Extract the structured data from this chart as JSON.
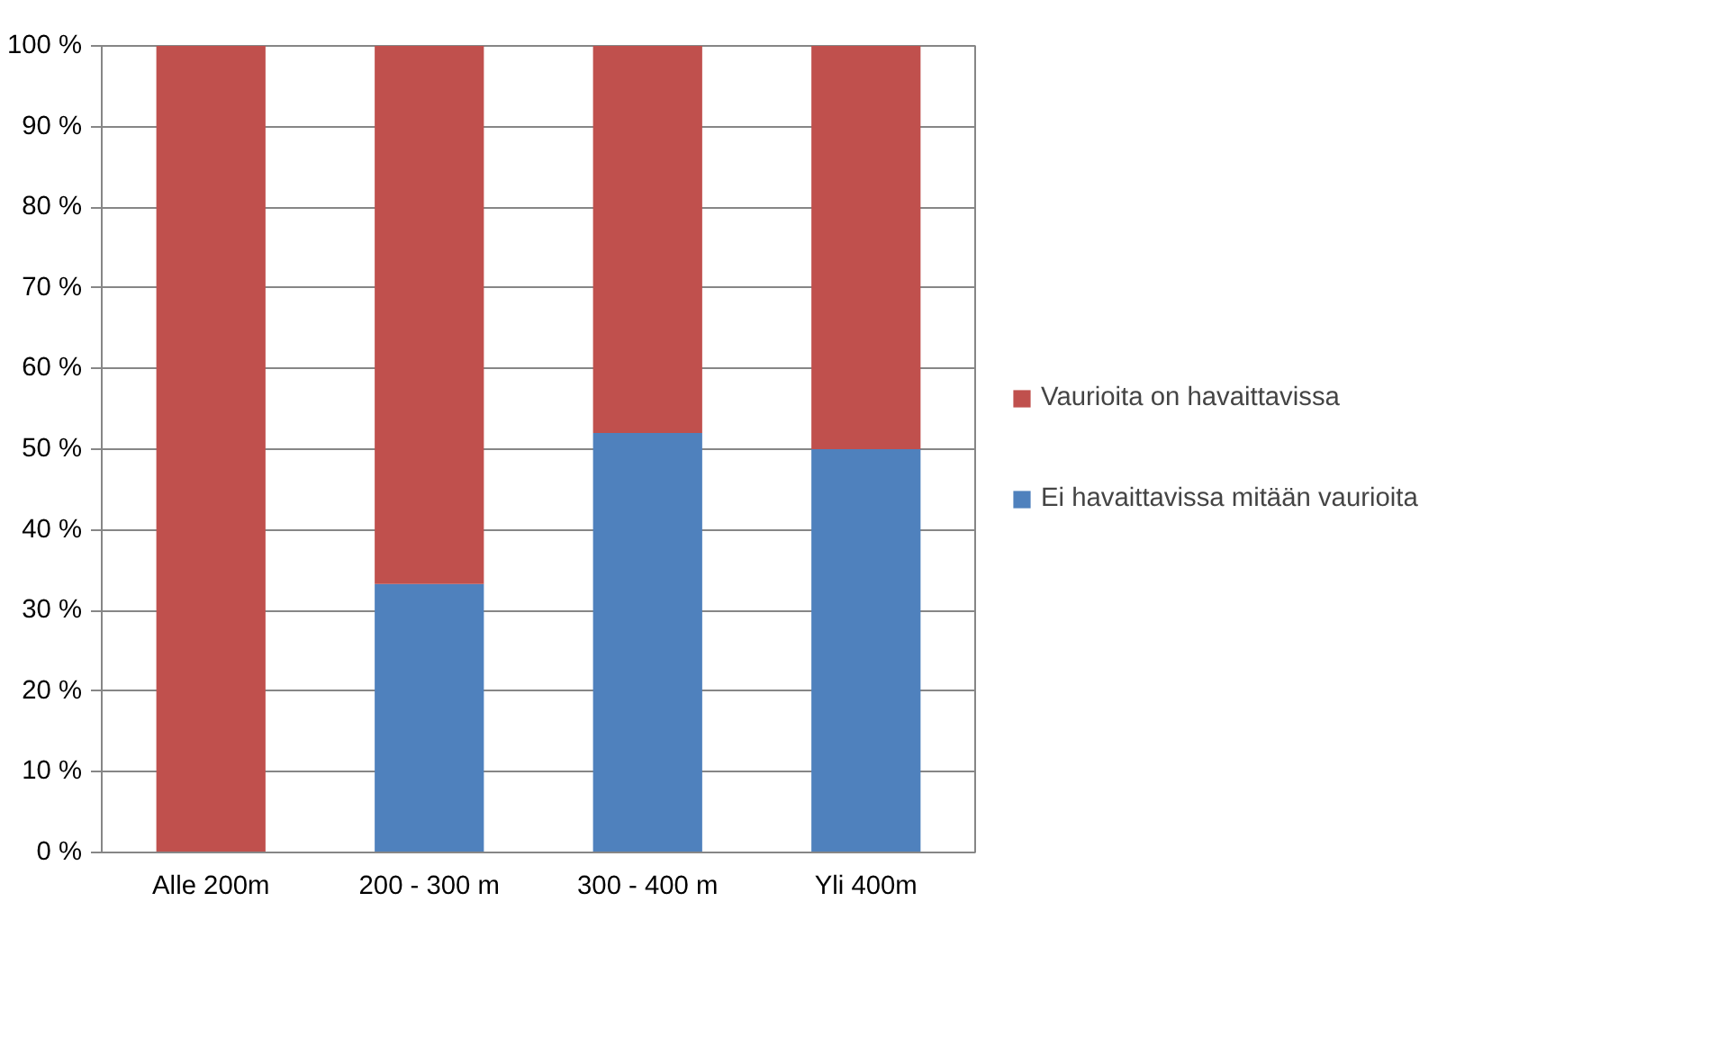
{
  "chart_data": {
    "type": "bar",
    "stacked": true,
    "categories": [
      "Alle 200m",
      "200 - 300 m",
      "300 - 400 m",
      "Yli 400m"
    ],
    "series": [
      {
        "name": "Ei havaittavissa mitään vaurioita",
        "color": "#4f81bd",
        "values": [
          0,
          33.3,
          52,
          50
        ]
      },
      {
        "name": "Vaurioita on havaittavissa",
        "color": "#c0504d",
        "values": [
          100,
          66.7,
          48,
          50
        ]
      }
    ],
    "ylim": [
      0,
      100
    ],
    "yticks": [
      {
        "value": 0,
        "label": "0 %"
      },
      {
        "value": 10,
        "label": "10 %"
      },
      {
        "value": 20,
        "label": "20 %"
      },
      {
        "value": 30,
        "label": "30 %"
      },
      {
        "value": 40,
        "label": "40 %"
      },
      {
        "value": 50,
        "label": "50 %"
      },
      {
        "value": 60,
        "label": "60 %"
      },
      {
        "value": 70,
        "label": "70 %"
      },
      {
        "value": 80,
        "label": "80 %"
      },
      {
        "value": 90,
        "label": "90 %"
      },
      {
        "value": 100,
        "label": "100 %"
      }
    ],
    "grid": "y",
    "legend": "right"
  }
}
